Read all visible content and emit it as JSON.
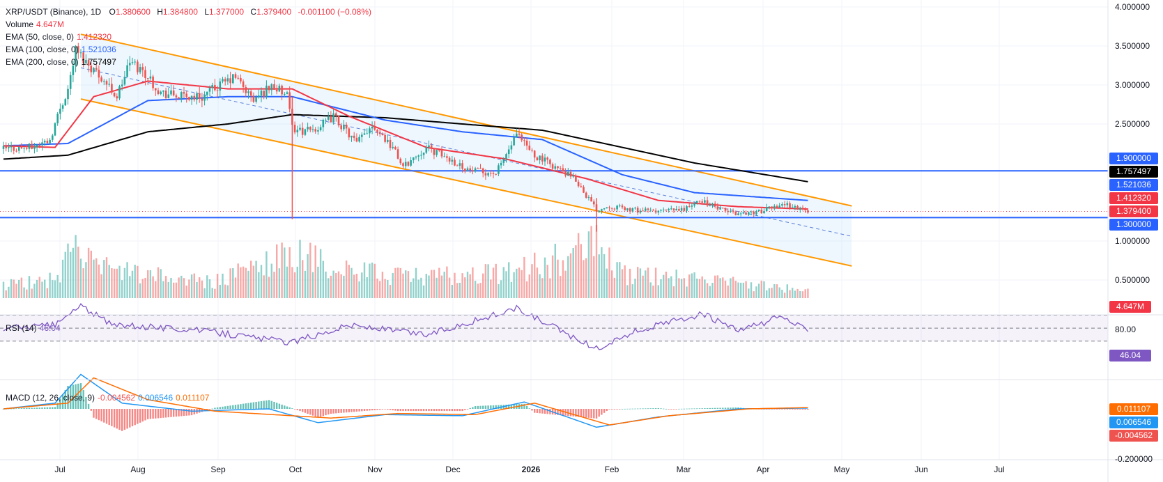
{
  "legend": {
    "title": "XRP/USDT (Binance), 1D",
    "o_label": "O",
    "o": "1.380600",
    "h_label": "H",
    "h": "1.384800",
    "l_label": "L",
    "l": "1.377000",
    "c_label": "C",
    "c": "1.379400",
    "change": "-0.001100 (−0.08%)",
    "volume_label": "Volume",
    "volume": "4.647M",
    "ema50_label": "EMA (50, close, 0)",
    "ema50": "1.412320",
    "ema100_label": "EMA (100, close, 0)",
    "ema100": "1.521036",
    "ema200_label": "EMA (200, close, 0)",
    "ema200": "1.757497",
    "rsi_label": "RSI (14)",
    "rsi": "46.04",
    "macd_label": "MACD (12, 26, close, 9)",
    "macd_hist": "-0.004562",
    "macd_line": "0.006546",
    "macd_signal": "0.011107"
  },
  "price_axis": [
    "4.000000",
    "3.500000",
    "3.000000",
    "2.500000",
    "1.000000",
    "0.500000"
  ],
  "rsi_axis": [
    "80.00"
  ],
  "macd_axis": [
    "-0.200000"
  ],
  "x_axis": [
    {
      "label": "Jul",
      "bold": false
    },
    {
      "label": "Aug",
      "bold": false
    },
    {
      "label": "Sep",
      "bold": false
    },
    {
      "label": "Oct",
      "bold": false
    },
    {
      "label": "Nov",
      "bold": false
    },
    {
      "label": "Dec",
      "bold": false
    },
    {
      "label": "2026",
      "bold": true
    },
    {
      "label": "Feb",
      "bold": false
    },
    {
      "label": "Mar",
      "bold": false
    },
    {
      "label": "Apr",
      "bold": false
    },
    {
      "label": "May",
      "bold": false
    },
    {
      "label": "Jun",
      "bold": false
    },
    {
      "label": "Jul",
      "bold": false
    }
  ],
  "badges": {
    "level_upper": "1.900000",
    "ema200": "1.757497",
    "ema100": "1.521036",
    "ema50": "1.412320",
    "last_price": "1.379400",
    "level_lower": "1.300000",
    "volume": "4.647M",
    "rsi": "46.04",
    "macd_signal": "0.011107",
    "macd_line": "0.006546",
    "macd_hist": "-0.004562"
  },
  "colors": {
    "up": "#26a69a",
    "down": "#ef5350",
    "ema50": "#f23645",
    "ema100": "#2962ff",
    "ema200": "#000000",
    "channel": "#ff9800",
    "level": "#2962ff",
    "rsi": "#7e57c2",
    "macd": "#2196f3",
    "signal": "#ff6d00"
  },
  "chart_data": {
    "type": "candlestick",
    "symbol": "XRP/USDT",
    "interval": "1D",
    "ylim": [
      0.25,
      4.0
    ],
    "horizontal_levels": [
      1.9,
      1.3
    ],
    "last_close": 1.3794,
    "price_path": [
      [
        "2025-06-20",
        2.18
      ],
      [
        "2025-07-01",
        2.2
      ],
      [
        "2025-07-08",
        2.3
      ],
      [
        "2025-07-12",
        2.7
      ],
      [
        "2025-07-15",
        2.95
      ],
      [
        "2025-07-18",
        3.45
      ],
      [
        "2025-07-22",
        3.3
      ],
      [
        "2025-07-28",
        3.1
      ],
      [
        "2025-08-03",
        2.85
      ],
      [
        "2025-08-08",
        3.3
      ],
      [
        "2025-08-14",
        3.15
      ],
      [
        "2025-08-20",
        2.9
      ],
      [
        "2025-08-28",
        2.85
      ],
      [
        "2025-09-05",
        2.85
      ],
      [
        "2025-09-12",
        3.0
      ],
      [
        "2025-09-18",
        3.1
      ],
      [
        "2025-09-25",
        2.8
      ],
      [
        "2025-10-02",
        3.0
      ],
      [
        "2025-10-08",
        2.85
      ],
      [
        "2025-10-10",
        2.45
      ],
      [
        "2025-10-15",
        2.4
      ],
      [
        "2025-10-20",
        2.45
      ],
      [
        "2025-10-26",
        2.6
      ],
      [
        "2025-11-04",
        2.25
      ],
      [
        "2025-11-10",
        2.5
      ],
      [
        "2025-11-18",
        2.2
      ],
      [
        "2025-11-22",
        1.95
      ],
      [
        "2025-12-01",
        2.2
      ],
      [
        "2025-12-10",
        2.05
      ],
      [
        "2025-12-18",
        1.9
      ],
      [
        "2025-12-28",
        1.87
      ],
      [
        "2026-01-05",
        2.35
      ],
      [
        "2026-01-12",
        2.1
      ],
      [
        "2026-01-20",
        1.95
      ],
      [
        "2026-01-28",
        1.78
      ],
      [
        "2026-02-05",
        1.4
      ],
      [
        "2026-02-10",
        1.45
      ],
      [
        "2026-02-18",
        1.4
      ],
      [
        "2026-02-28",
        1.38
      ],
      [
        "2026-03-10",
        1.4
      ],
      [
        "2026-03-18",
        1.52
      ],
      [
        "2026-03-25",
        1.4
      ],
      [
        "2026-04-01",
        1.35
      ],
      [
        "2026-04-10",
        1.38
      ],
      [
        "2026-04-18",
        1.48
      ],
      [
        "2026-04-28",
        1.38
      ]
    ],
    "ema50_path": [
      [
        "2025-06-20",
        2.22
      ],
      [
        "2025-07-10",
        2.2
      ],
      [
        "2025-07-25",
        2.85
      ],
      [
        "2025-08-15",
        3.05
      ],
      [
        "2025-09-15",
        2.95
      ],
      [
        "2025-10-10",
        2.95
      ],
      [
        "2025-11-01",
        2.6
      ],
      [
        "2025-12-01",
        2.2
      ],
      [
        "2026-01-01",
        2.05
      ],
      [
        "2026-02-01",
        1.8
      ],
      [
        "2026-03-01",
        1.52
      ],
      [
        "2026-04-01",
        1.44
      ],
      [
        "2026-04-28",
        1.41
      ]
    ],
    "ema100_path": [
      [
        "2025-06-20",
        2.22
      ],
      [
        "2025-07-15",
        2.25
      ],
      [
        "2025-08-15",
        2.8
      ],
      [
        "2025-09-15",
        2.85
      ],
      [
        "2025-10-10",
        2.85
      ],
      [
        "2025-11-15",
        2.55
      ],
      [
        "2025-12-15",
        2.4
      ],
      [
        "2026-01-15",
        2.3
      ],
      [
        "2026-02-15",
        1.85
      ],
      [
        "2026-03-15",
        1.62
      ],
      [
        "2026-04-28",
        1.52
      ]
    ],
    "ema200_path": [
      [
        "2025-06-20",
        2.05
      ],
      [
        "2025-07-15",
        2.1
      ],
      [
        "2025-08-15",
        2.4
      ],
      [
        "2025-09-15",
        2.5
      ],
      [
        "2025-10-10",
        2.62
      ],
      [
        "2025-11-15",
        2.58
      ],
      [
        "2025-12-15",
        2.5
      ],
      [
        "2026-01-15",
        2.42
      ],
      [
        "2026-02-15",
        2.2
      ],
      [
        "2026-03-15",
        2.0
      ],
      [
        "2026-04-28",
        1.76
      ]
    ],
    "channel": {
      "upper": [
        [
          "2025-07-20",
          3.65
        ],
        [
          "2026-05-15",
          1.45
        ]
      ],
      "lower": [
        [
          "2025-07-20",
          2.82
        ],
        [
          "2026-05-15",
          0.68
        ]
      ],
      "mid": [
        [
          "2025-07-20",
          3.22
        ],
        [
          "2026-05-15",
          1.06
        ]
      ]
    },
    "volume_path": [
      [
        "2025-06-20",
        0.25
      ],
      [
        "2025-07-10",
        0.35
      ],
      [
        "2025-07-18",
        1.0
      ],
      [
        "2025-07-25",
        0.6
      ],
      [
        "2025-08-10",
        0.45
      ],
      [
        "2025-09-10",
        0.3
      ],
      [
        "2025-10-10",
        0.85
      ],
      [
        "2025-11-01",
        0.5
      ],
      [
        "2025-12-01",
        0.4
      ],
      [
        "2026-01-05",
        0.5
      ],
      [
        "2026-02-05",
        1.0
      ],
      [
        "2026-02-15",
        0.45
      ],
      [
        "2026-03-15",
        0.35
      ],
      [
        "2026-04-28",
        0.15
      ]
    ],
    "rsi_path": [
      [
        "2025-06-20",
        50
      ],
      [
        "2025-07-10",
        55
      ],
      [
        "2025-07-20",
        85
      ],
      [
        "2025-08-01",
        55
      ],
      [
        "2025-09-01",
        48
      ],
      [
        "2025-10-10",
        28
      ],
      [
        "2025-11-01",
        55
      ],
      [
        "2025-12-01",
        40
      ],
      [
        "2026-01-05",
        80
      ],
      [
        "2026-01-25",
        40
      ],
      [
        "2026-02-05",
        18
      ],
      [
        "2026-02-20",
        45
      ],
      [
        "2026-03-18",
        72
      ],
      [
        "2026-04-01",
        45
      ],
      [
        "2026-04-18",
        68
      ],
      [
        "2026-04-28",
        46.04
      ]
    ],
    "rsi_levels": [
      70,
      50,
      30
    ],
    "macd_path": [
      [
        "2025-06-20",
        0.0
      ],
      [
        "2025-07-10",
        0.05
      ],
      [
        "2025-07-20",
        0.3
      ],
      [
        "2025-08-05",
        0.05
      ],
      [
        "2025-09-01",
        -0.02
      ],
      [
        "2025-10-01",
        0.0
      ],
      [
        "2025-10-20",
        -0.12
      ],
      [
        "2025-11-15",
        -0.05
      ],
      [
        "2025-12-15",
        -0.06
      ],
      [
        "2026-01-08",
        0.06
      ],
      [
        "2026-02-05",
        -0.16
      ],
      [
        "2026-03-01",
        -0.07
      ],
      [
        "2026-04-01",
        0.0
      ],
      [
        "2026-04-28",
        0.0065
      ]
    ],
    "signal_path": [
      [
        "2025-06-20",
        0.0
      ],
      [
        "2025-07-15",
        0.05
      ],
      [
        "2025-07-25",
        0.27
      ],
      [
        "2025-08-15",
        0.08
      ],
      [
        "2025-09-10",
        -0.02
      ],
      [
        "2025-10-25",
        -0.08
      ],
      [
        "2025-11-20",
        -0.04
      ],
      [
        "2025-12-20",
        -0.05
      ],
      [
        "2026-01-12",
        0.05
      ],
      [
        "2026-02-10",
        -0.14
      ],
      [
        "2026-03-05",
        -0.06
      ],
      [
        "2026-04-05",
        0.0
      ],
      [
        "2026-04-28",
        0.0111
      ]
    ]
  }
}
